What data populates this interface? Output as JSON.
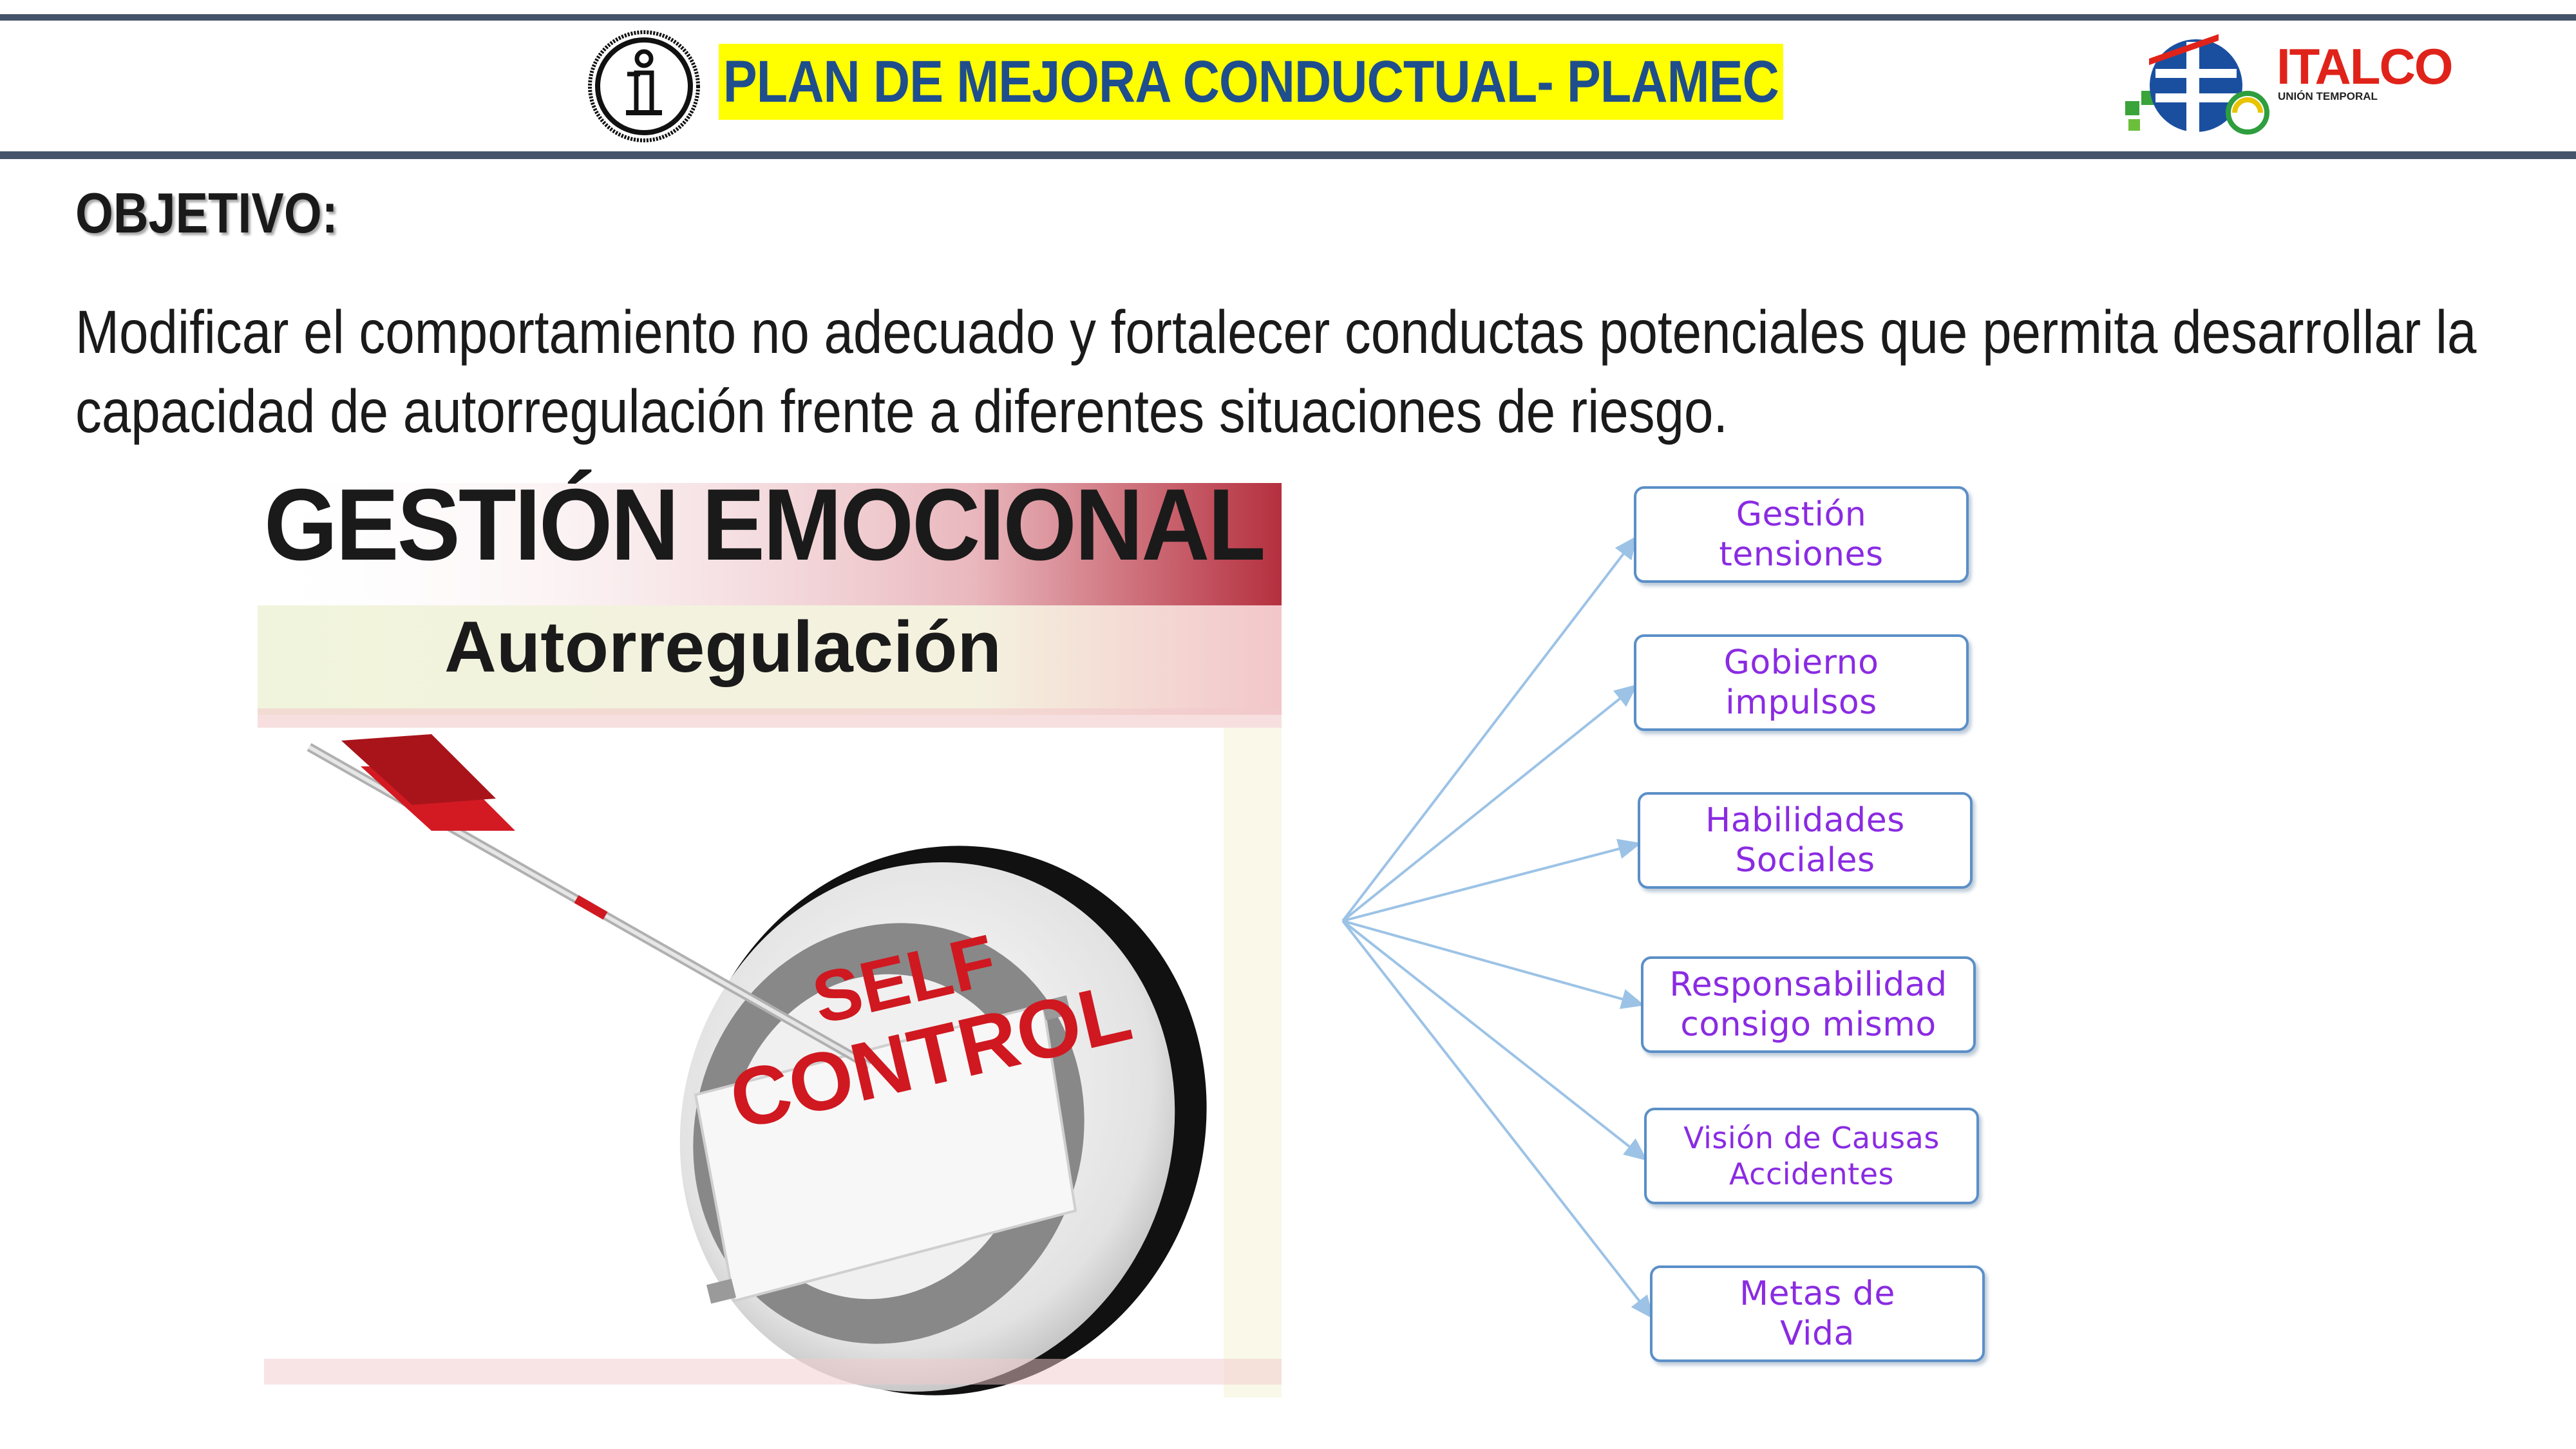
{
  "header": {
    "title": "PLAN DE MEJORA CONDUCTUAL- PLAMEC",
    "info_icon": "info-icon",
    "logo": {
      "name": "ITALCO",
      "subtitle": "UNIÓN TEMPORAL"
    }
  },
  "objective": {
    "heading": "OBJETIVO:",
    "text": "Modificar el comportamiento no adecuado y fortalecer conductas potenciales  que permita desarrollar la capacidad de autorregulación frente a diferentes situaciones de riesgo."
  },
  "graphic": {
    "title": "GESTIÓN EMOCIONAL",
    "subtitle": "Autorregulación",
    "target_line1": "SELF",
    "target_line2": "CONTROL"
  },
  "branches": [
    {
      "line1": "Gestión",
      "line2": "tensiones"
    },
    {
      "line1": "Gobierno",
      "line2": "impulsos"
    },
    {
      "line1": "Habilidades",
      "line2": "Sociales"
    },
    {
      "line1": "Responsabilidad",
      "line2": "consigo mismo"
    },
    {
      "line1": "Visión de Causas",
      "line2": "Accidentes"
    },
    {
      "line1": "Metas de",
      "line2": "Vida"
    }
  ],
  "colors": {
    "header_rule": "#44546a",
    "title_text": "#1f4e8c",
    "title_highlight": "#ffff00",
    "box_border": "#5b8fc7",
    "box_text": "#8a2be2",
    "connector": "#9cc3e6"
  }
}
